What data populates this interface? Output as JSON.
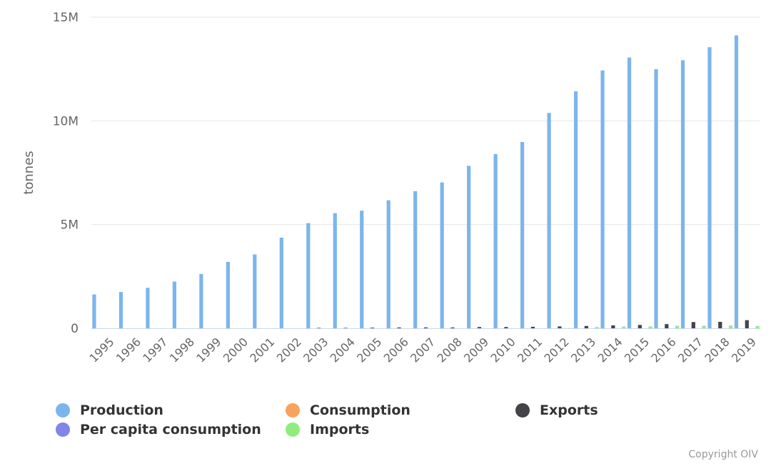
{
  "chart_data": {
    "type": "bar",
    "title": "",
    "xlabel": "",
    "ylabel": "tonnes",
    "ylim": [
      0,
      15000000
    ],
    "yticks": [
      {
        "value": 0,
        "label": "0"
      },
      {
        "value": 5000000,
        "label": "5M"
      },
      {
        "value": 10000000,
        "label": "10M"
      },
      {
        "value": 15000000,
        "label": "15M"
      }
    ],
    "grid": true,
    "legend_position": "bottom",
    "categories": [
      "1995",
      "1996",
      "1997",
      "1998",
      "1999",
      "2000",
      "2001",
      "2002",
      "2003",
      "2004",
      "2005",
      "2006",
      "2007",
      "2008",
      "2009",
      "2010",
      "2011",
      "2012",
      "2013",
      "2014",
      "2015",
      "2016",
      "2017",
      "2018",
      "2019"
    ],
    "series": [
      {
        "name": "Production",
        "color": "#7cb5ec",
        "values": [
          1630000,
          1750000,
          1950000,
          2250000,
          2620000,
          3200000,
          3560000,
          4370000,
          5070000,
          5550000,
          5670000,
          6170000,
          6610000,
          7030000,
          7830000,
          8400000,
          8980000,
          10380000,
          11420000,
          12430000,
          13050000,
          12490000,
          12920000,
          13550000,
          14120000
        ]
      },
      {
        "name": "Consumption",
        "color": "#f7a35c",
        "values": [
          0,
          0,
          0,
          0,
          0,
          0,
          0,
          0,
          0,
          0,
          0,
          0,
          0,
          0,
          0,
          0,
          0,
          0,
          0,
          0,
          0,
          0,
          0,
          0,
          0
        ]
      },
      {
        "name": "Exports",
        "color": "#434348",
        "values": [
          0,
          0,
          0,
          0,
          0,
          0,
          0,
          0,
          20000,
          20000,
          30000,
          40000,
          40000,
          40000,
          60000,
          60000,
          70000,
          90000,
          110000,
          140000,
          160000,
          200000,
          300000,
          310000,
          390000
        ]
      },
      {
        "name": "Per capita consumption",
        "color": "#8085e9",
        "values": [
          0,
          0,
          0,
          0,
          0,
          0,
          0,
          0,
          0,
          0,
          0,
          0,
          0,
          0,
          0,
          0,
          0,
          0,
          0,
          0,
          0,
          0,
          0,
          0,
          0
        ]
      },
      {
        "name": "Imports",
        "color": "#90ed7d",
        "values": [
          0,
          0,
          0,
          0,
          0,
          0,
          0,
          0,
          0,
          0,
          0,
          0,
          0,
          0,
          0,
          0,
          0,
          10000,
          60000,
          80000,
          90000,
          120000,
          120000,
          130000,
          110000
        ]
      }
    ]
  },
  "credits": "Copyright OIV"
}
